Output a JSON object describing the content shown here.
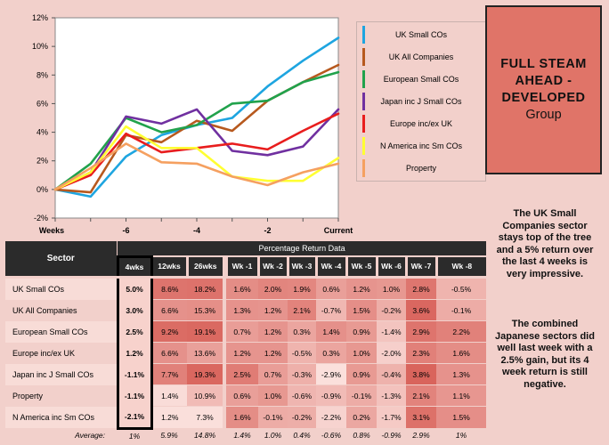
{
  "chart_data": {
    "type": "line",
    "x": [
      -8,
      -7,
      -6,
      -5,
      -4,
      -3,
      -2,
      -1,
      0
    ],
    "x_tick_labels": [
      "Weeks",
      "-6",
      "-4",
      "-2",
      "Current"
    ],
    "y_ticks": [
      "-2%",
      "0%",
      "2%",
      "4%",
      "6%",
      "8%",
      "10%",
      "12%"
    ],
    "ylim": [
      -2,
      12
    ],
    "series": [
      {
        "name": "UK Small COs",
        "color": "#1ea5e0",
        "values": [
          0,
          -0.5,
          2.3,
          3.8,
          4.5,
          5.0,
          7.2,
          9.0,
          10.6
        ]
      },
      {
        "name": "UK All Companies",
        "color": "#b7591e",
        "values": [
          0,
          -0.2,
          3.8,
          3.3,
          4.8,
          4.1,
          6.2,
          7.5,
          8.7
        ]
      },
      {
        "name": "European Small COs",
        "color": "#21a24c",
        "values": [
          0,
          1.8,
          5.0,
          4.0,
          4.5,
          6.0,
          6.2,
          7.5,
          8.2
        ]
      },
      {
        "name": "Japan inc J Small COs",
        "color": "#7030a0",
        "values": [
          0,
          1.2,
          5.1,
          4.6,
          5.6,
          2.7,
          2.4,
          3.0,
          5.6
        ]
      },
      {
        "name": "Europe inc/ex UK",
        "color": "#e81d1d",
        "values": [
          0,
          1.0,
          3.9,
          2.6,
          2.9,
          3.2,
          2.8,
          4.1,
          5.3
        ]
      },
      {
        "name": "N America inc Sm COs",
        "color": "#ffff33",
        "values": [
          0,
          1.2,
          4.4,
          2.9,
          2.9,
          0.9,
          0.6,
          0.6,
          2.2
        ]
      },
      {
        "name": "Property",
        "color": "#f5a060",
        "values": [
          0,
          1.5,
          3.2,
          1.9,
          1.8,
          0.9,
          0.3,
          1.2,
          1.8
        ]
      }
    ]
  },
  "title": {
    "main": "FULL STEAM AHEAD - DEVELOPED",
    "sub": "Group"
  },
  "commentary": [
    "The UK Small Companies sector stays top of the tree and a 5% return over the last 4 weeks is very impressive.",
    "The combined Japanese sectors did well last week with a 2.5% gain, but its 4 week return is still negative."
  ],
  "table": {
    "sector_header": "Sector",
    "group_header": "Percentage Return Data",
    "columns": [
      "4wks",
      "12wks",
      "26wks",
      "Wk -1",
      "Wk -2",
      "Wk -3",
      "Wk -4",
      "Wk -5",
      "Wk -6",
      "Wk -7",
      "Wk -8"
    ],
    "rows": [
      {
        "sector": "UK Small COs",
        "values": [
          "5.0%",
          "8.6%",
          "18.2%",
          "1.6%",
          "2.0%",
          "1.9%",
          "0.6%",
          "1.2%",
          "1.0%",
          "2.8%",
          "-0.5%"
        ]
      },
      {
        "sector": "UK All Companies",
        "values": [
          "3.0%",
          "6.6%",
          "15.3%",
          "1.3%",
          "1.2%",
          "2.1%",
          "-0.7%",
          "1.5%",
          "-0.2%",
          "3.6%",
          "-0.1%"
        ]
      },
      {
        "sector": "European Small COs",
        "values": [
          "2.5%",
          "9.2%",
          "19.1%",
          "0.7%",
          "1.2%",
          "0.3%",
          "1.4%",
          "0.9%",
          "-1.4%",
          "2.9%",
          "2.2%"
        ]
      },
      {
        "sector": "Europe inc/ex UK",
        "values": [
          "1.2%",
          "6.6%",
          "13.6%",
          "1.2%",
          "1.2%",
          "-0.5%",
          "0.3%",
          "1.0%",
          "-2.0%",
          "2.3%",
          "1.6%"
        ]
      },
      {
        "sector": "Japan inc J Small COs",
        "values": [
          "-1.1%",
          "7.7%",
          "19.3%",
          "2.5%",
          "0.7%",
          "-0.3%",
          "-2.9%",
          "0.9%",
          "-0.4%",
          "3.8%",
          "1.3%"
        ]
      },
      {
        "sector": "Property",
        "values": [
          "-1.1%",
          "1.4%",
          "10.9%",
          "0.6%",
          "1.0%",
          "-0.6%",
          "-0.9%",
          "-0.1%",
          "-1.3%",
          "2.1%",
          "1.1%"
        ]
      },
      {
        "sector": "N America inc Sm COs",
        "values": [
          "-2.1%",
          "1.2%",
          "7.3%",
          "1.6%",
          "-0.1%",
          "-0.2%",
          "-2.2%",
          "0.2%",
          "-1.7%",
          "3.1%",
          "1.5%"
        ]
      }
    ],
    "average_label": "Average:",
    "averages": [
      "1%",
      "5.9%",
      "14.8%",
      "1.4%",
      "1.0%",
      "0.4%",
      "-0.6%",
      "0.8%",
      "-0.9%",
      "2.9%",
      "1%"
    ]
  }
}
